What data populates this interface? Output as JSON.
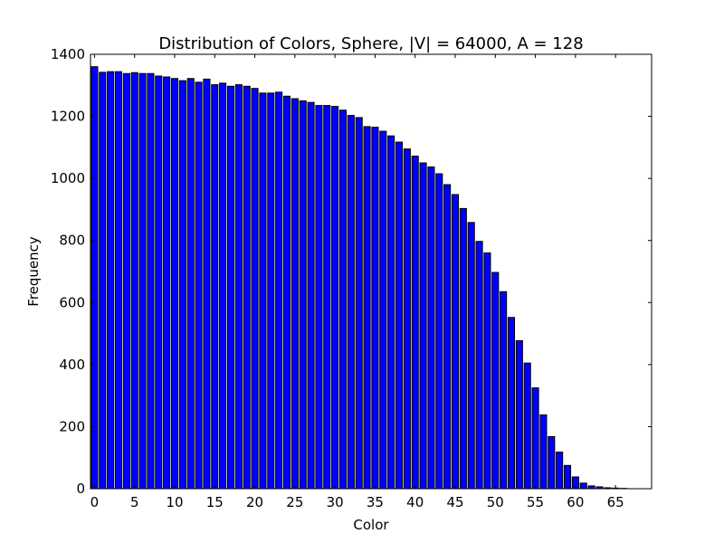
{
  "chart_data": {
    "type": "bar",
    "title": "Distribution of Colors, Sphere, |V| = 64000, A = 128",
    "xlabel": "Color",
    "ylabel": "Frequency",
    "xlim": [
      -0.5,
      69.5
    ],
    "ylim": [
      0,
      1400
    ],
    "xticks": [
      0,
      5,
      10,
      15,
      20,
      25,
      30,
      35,
      40,
      45,
      50,
      55,
      60,
      65
    ],
    "yticks": [
      0,
      200,
      400,
      600,
      800,
      1000,
      1200,
      1400
    ],
    "bar_color": "#0000ff",
    "grid": false,
    "categories": [
      0,
      1,
      2,
      3,
      4,
      5,
      6,
      7,
      8,
      9,
      10,
      11,
      12,
      13,
      14,
      15,
      16,
      17,
      18,
      19,
      20,
      21,
      22,
      23,
      24,
      25,
      26,
      27,
      28,
      29,
      30,
      31,
      32,
      33,
      34,
      35,
      36,
      37,
      38,
      39,
      40,
      41,
      42,
      43,
      44,
      45,
      46,
      47,
      48,
      49,
      50,
      51,
      52,
      53,
      54,
      55,
      56,
      57,
      58,
      59,
      60,
      61,
      62,
      63,
      64,
      65,
      66
    ],
    "values": [
      1360,
      1342,
      1344,
      1344,
      1338,
      1341,
      1338,
      1338,
      1330,
      1327,
      1322,
      1315,
      1322,
      1310,
      1320,
      1302,
      1307,
      1297,
      1302,
      1297,
      1290,
      1275,
      1275,
      1278,
      1265,
      1257,
      1250,
      1245,
      1235,
      1235,
      1232,
      1220,
      1203,
      1196,
      1167,
      1165,
      1152,
      1137,
      1117,
      1095,
      1072,
      1050,
      1037,
      1015,
      980,
      948,
      903,
      858,
      797,
      760,
      697,
      635,
      552,
      477,
      405,
      325,
      238,
      168,
      118,
      75,
      38,
      18,
      9,
      6,
      3,
      2,
      1
    ]
  }
}
